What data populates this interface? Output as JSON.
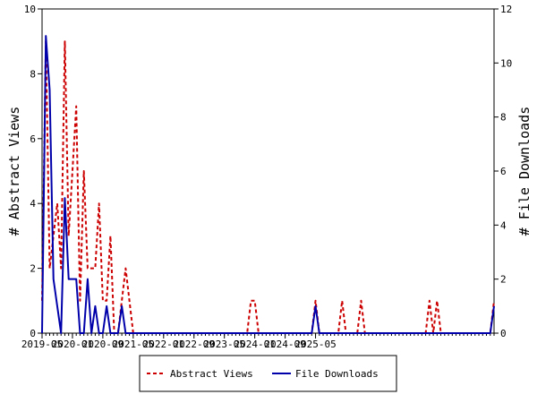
{
  "chart_data": {
    "type": "line",
    "x_tick_labels": [
      "2019-05",
      "2020-01",
      "2020-09",
      "2021-05",
      "2022-01",
      "2022-09",
      "2023-05",
      "2024-01",
      "2024-09",
      "2025-05"
    ],
    "x_start": "2019-05",
    "left_axis": {
      "label": "# Abstract Views",
      "ylim": [
        0,
        10
      ],
      "ticks": [
        0,
        2,
        4,
        6,
        8,
        10
      ]
    },
    "right_axis": {
      "label": "# File Downloads",
      "ylim": [
        0,
        12
      ],
      "ticks": [
        0,
        2,
        4,
        6,
        8,
        10,
        12
      ]
    },
    "grid": false,
    "legend_position": "bottom",
    "series": [
      {
        "name": "Abstract Views",
        "axis": "left",
        "color": "#cc0000",
        "style": "dashed",
        "values": [
          1,
          9,
          2,
          3,
          4,
          2,
          9,
          3,
          5,
          7,
          1,
          5,
          2,
          2,
          2,
          4,
          1,
          1,
          3,
          0,
          0,
          1,
          2,
          1,
          0,
          0,
          0,
          0,
          0,
          0,
          0,
          0,
          0,
          0,
          0,
          0,
          0,
          0,
          0,
          0,
          0,
          0,
          0,
          0,
          0,
          0,
          0,
          0,
          0,
          0,
          0,
          0,
          0,
          0,
          0,
          1,
          1,
          0,
          0,
          0,
          0,
          0,
          0,
          0,
          0,
          0,
          0,
          0,
          0,
          0,
          0,
          0,
          1,
          0,
          0,
          0,
          0,
          0,
          0,
          1,
          0,
          0,
          0,
          0,
          1,
          0,
          0,
          0,
          0,
          0,
          0,
          0,
          0,
          0,
          0,
          0,
          0,
          0,
          0,
          0,
          0,
          0,
          1,
          0,
          1,
          0,
          0,
          0,
          0,
          0,
          0,
          0,
          0,
          0,
          0,
          0,
          0,
          0,
          0,
          1
        ]
      },
      {
        "name": "File Downloads",
        "axis": "right",
        "color": "#0000aa",
        "style": "solid",
        "values": [
          0,
          11,
          9,
          2,
          1,
          0,
          5,
          2,
          2,
          2,
          0,
          0,
          2,
          0,
          1,
          0,
          0,
          1,
          0,
          0,
          0,
          1,
          0,
          0,
          0,
          0,
          0,
          0,
          0,
          0,
          0,
          0,
          0,
          0,
          0,
          0,
          0,
          0,
          0,
          0,
          0,
          0,
          0,
          0,
          0,
          0,
          0,
          0,
          0,
          0,
          0,
          0,
          0,
          0,
          0,
          0,
          0,
          0,
          0,
          0,
          0,
          0,
          0,
          0,
          0,
          0,
          0,
          0,
          0,
          0,
          0,
          0,
          1,
          0,
          0,
          0,
          0,
          0,
          0,
          0,
          0,
          0,
          0,
          0,
          0,
          0,
          0,
          0,
          0,
          0,
          0,
          0,
          0,
          0,
          0,
          0,
          0,
          0,
          0,
          0,
          0,
          0,
          0,
          0,
          0,
          0,
          0,
          0,
          0,
          0,
          0,
          0,
          0,
          0,
          0,
          0,
          0,
          0,
          0,
          1
        ]
      }
    ]
  }
}
